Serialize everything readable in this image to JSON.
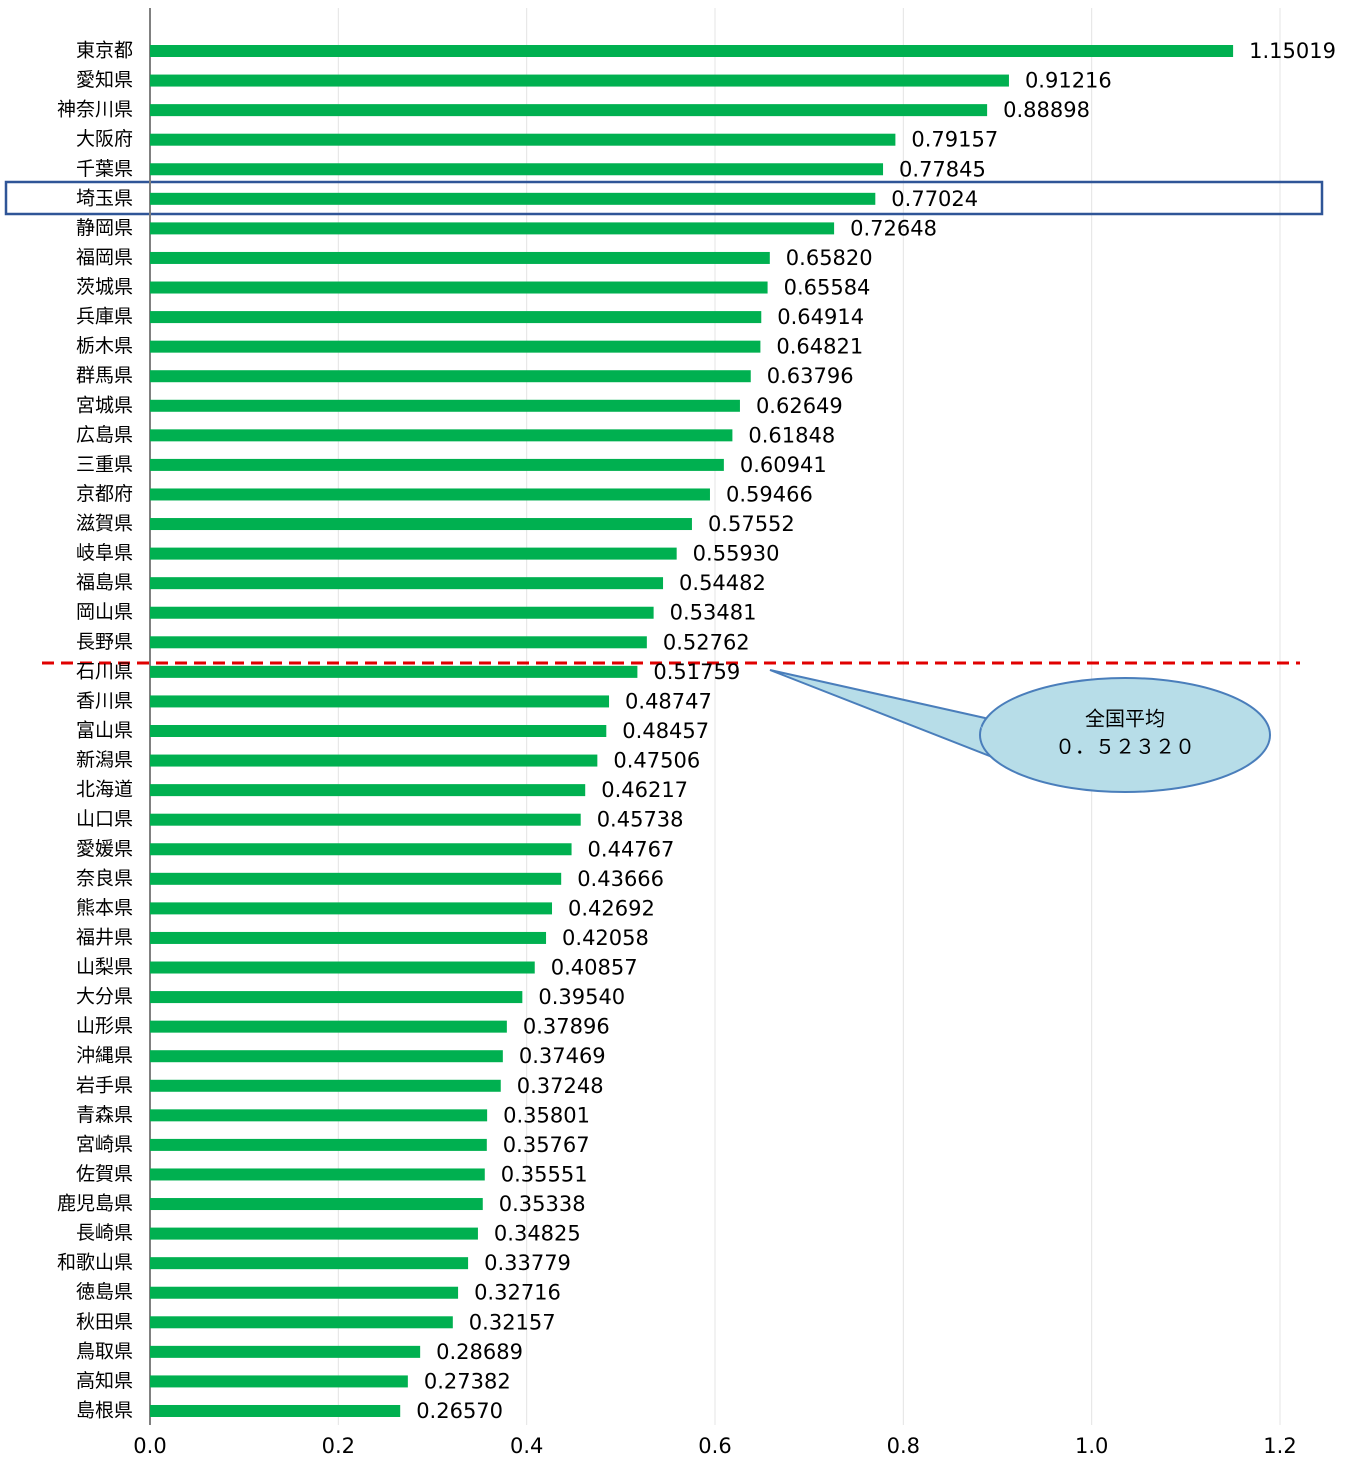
{
  "chart_data": {
    "type": "barh",
    "categories": [
      "東京都",
      "愛知県",
      "神奈川県",
      "大阪府",
      "千葉県",
      "埼玉県",
      "静岡県",
      "福岡県",
      "茨城県",
      "兵庫県",
      "栃木県",
      "群馬県",
      "宮城県",
      "広島県",
      "三重県",
      "京都府",
      "滋賀県",
      "岐阜県",
      "福島県",
      "岡山県",
      "長野県",
      "石川県",
      "香川県",
      "富山県",
      "新潟県",
      "北海道",
      "山口県",
      "愛媛県",
      "奈良県",
      "熊本県",
      "福井県",
      "山梨県",
      "大分県",
      "山形県",
      "沖縄県",
      "岩手県",
      "青森県",
      "宮崎県",
      "佐賀県",
      "鹿児島県",
      "長崎県",
      "和歌山県",
      "徳島県",
      "秋田県",
      "鳥取県",
      "高知県",
      "島根県"
    ],
    "values": [
      1.15019,
      0.91216,
      0.88898,
      0.79157,
      0.77845,
      0.77024,
      0.72648,
      0.6582,
      0.65584,
      0.64914,
      0.64821,
      0.63796,
      0.62649,
      0.61848,
      0.60941,
      0.59466,
      0.57552,
      0.5593,
      0.54482,
      0.53481,
      0.52762,
      0.51759,
      0.48747,
      0.48457,
      0.47506,
      0.46217,
      0.45738,
      0.44767,
      0.43666,
      0.42692,
      0.42058,
      0.40857,
      0.3954,
      0.37896,
      0.37469,
      0.37248,
      0.35801,
      0.35767,
      0.35551,
      0.35338,
      0.34825,
      0.33779,
      0.32716,
      0.32157,
      0.28689,
      0.27382,
      0.2657
    ],
    "value_labels": [
      "1.15019",
      "0.91216",
      "0.88898",
      "0.79157",
      "0.77845",
      "0.77024",
      "0.72648",
      "0.65820",
      "0.65584",
      "0.64914",
      "0.64821",
      "0.63796",
      "0.62649",
      "0.61848",
      "0.60941",
      "0.59466",
      "0.57552",
      "0.55930",
      "0.54482",
      "0.53481",
      "0.52762",
      "0.51759",
      "0.48747",
      "0.48457",
      "0.47506",
      "0.46217",
      "0.45738",
      "0.44767",
      "0.43666",
      "0.42692",
      "0.42058",
      "0.40857",
      "0.39540",
      "0.37896",
      "0.37469",
      "0.37248",
      "0.35801",
      "0.35767",
      "0.35551",
      "0.35338",
      "0.34825",
      "0.33779",
      "0.32716",
      "0.32157",
      "0.28689",
      "0.27382",
      "0.26570"
    ],
    "color": "#00b050",
    "xlim": [
      0,
      1.2
    ],
    "xticks": [
      {
        "value": 0,
        "label": "0.0"
      },
      0.2,
      0.4,
      0.6,
      0.8,
      {
        "value": 1,
        "label": "1.0"
      },
      1.2
    ],
    "grid": true,
    "annotation": [
      "全国平均",
      "０．５２３２０"
    ]
  }
}
